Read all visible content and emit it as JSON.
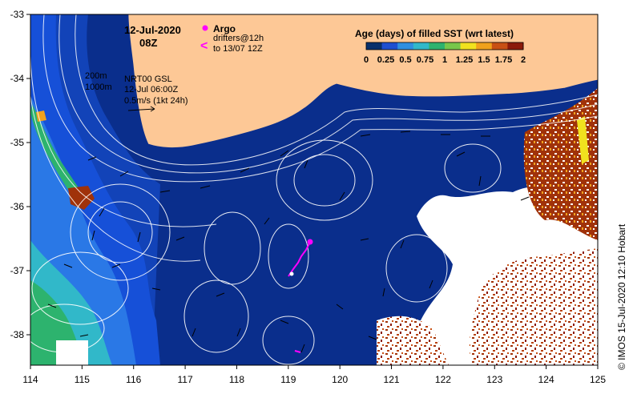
{
  "header": {
    "date": "12-Jul-2020",
    "time": "08Z"
  },
  "argo_legend": {
    "argo_label": "Argo",
    "drifters_line1": "drifters@12h",
    "drifters_line2": "to 13/07 12Z",
    "argo_color": "#ff00ff",
    "drifter_color": "#ff00ff"
  },
  "info": {
    "isobath_1": "200m",
    "isobath_2": "1000m",
    "product": "NRT00 GSL",
    "valid_time": "12-Jul 06:00Z",
    "vector_scale": "0.5m/s (1kt 24h)"
  },
  "colorbar": {
    "title": "Age (days) of filled SST (wrt latest)",
    "ticks": [
      "0",
      "0.25",
      "0.5",
      "0.75",
      "1",
      "1.25",
      "1.5",
      "1.75",
      "2"
    ],
    "colors": [
      "#08306b",
      "#1f4fd0",
      "#2f8fe0",
      "#31b8c9",
      "#2db36e",
      "#77c74a",
      "#f1e21e",
      "#f0a11c",
      "#c85014",
      "#8b1a0a"
    ]
  },
  "axes": {
    "lat_labels": [
      "-33",
      "-34",
      "-35",
      "-36",
      "-37",
      "-38"
    ],
    "lon_labels": [
      "114",
      "115",
      "116",
      "117",
      "118",
      "119",
      "120",
      "121",
      "122",
      "123",
      "124",
      "125"
    ]
  },
  "credit": "© IMOS 15-Jul-2020 12:10 Hobart",
  "colors": {
    "land": "#fdc896",
    "ocean": "#0a2e8c",
    "ocean_shelf": "#1650d8",
    "ocean_coast": "#2a78e6",
    "missing": "#ffffff",
    "old_data": "#a0320a"
  }
}
